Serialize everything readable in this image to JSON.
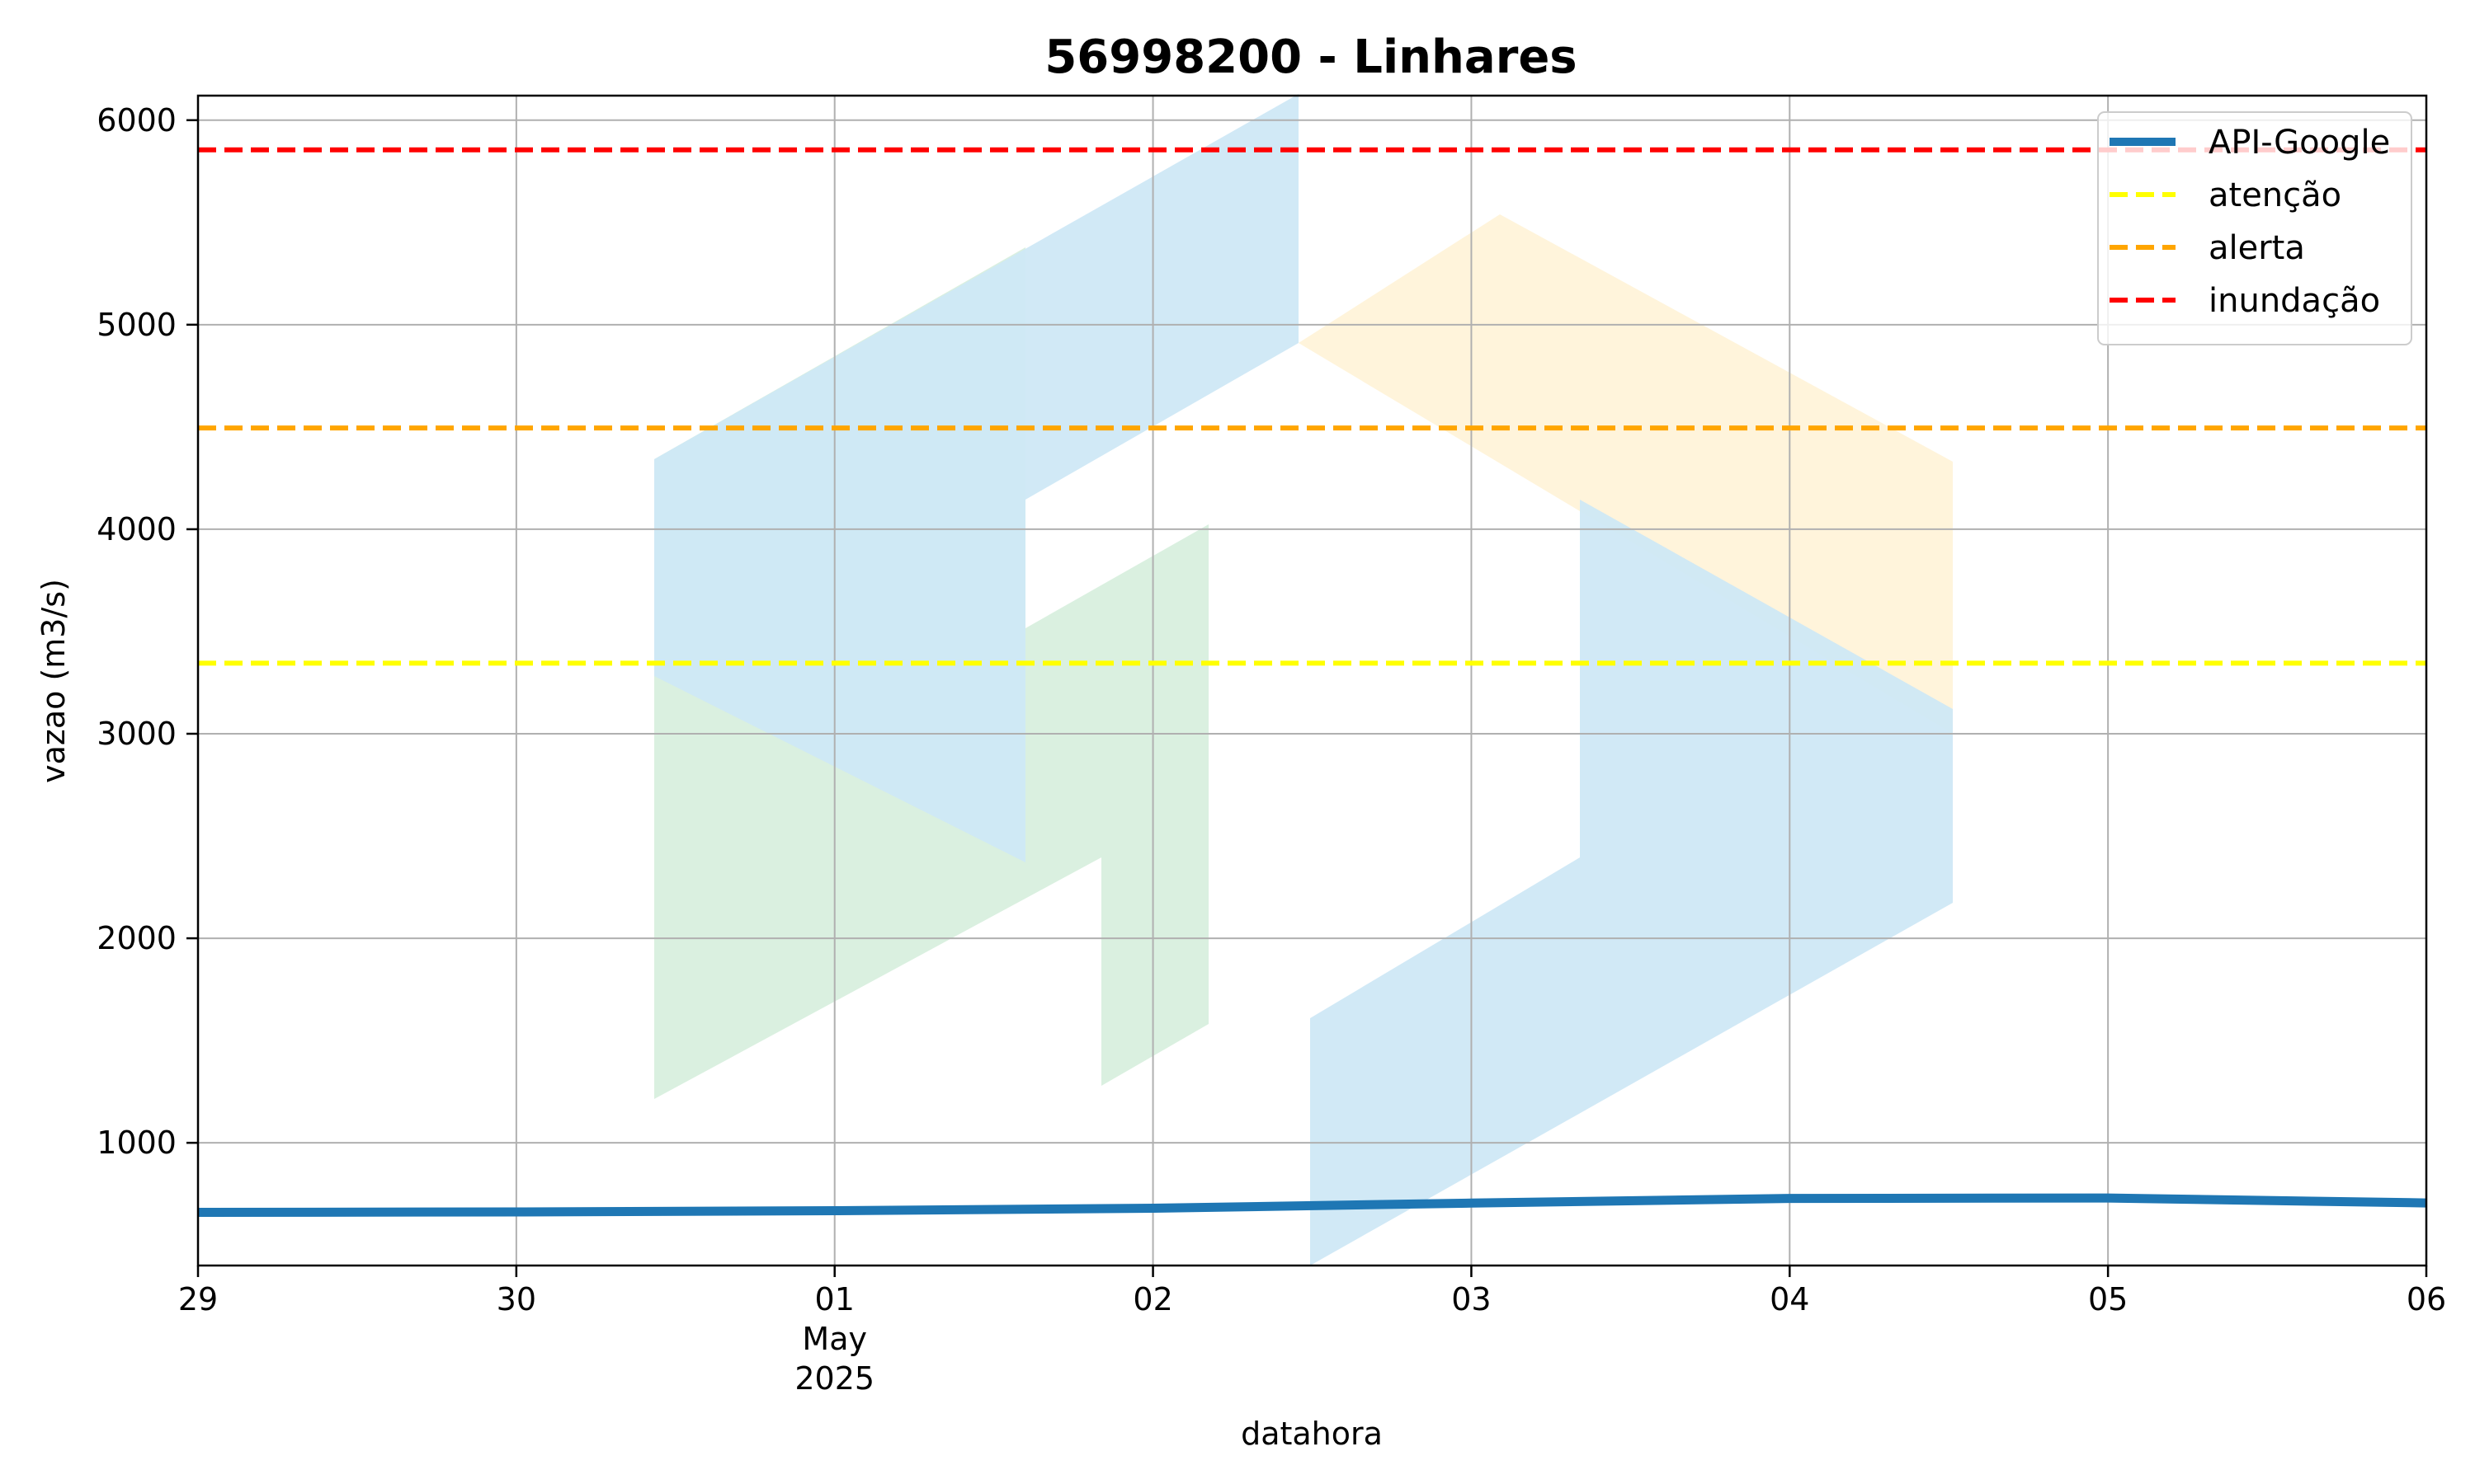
{
  "chart_data": {
    "type": "line",
    "title": "56998200 - Linhares",
    "xlabel": "datahora",
    "ylabel": "vazao (m3/s)",
    "xlim": [
      "2025-04-29",
      "2025-05-06"
    ],
    "ylim": [
      400,
      6120
    ],
    "grid": true,
    "legend_position": "top-right",
    "x_ticks": [
      {
        "date": "2025-04-29",
        "label": "29",
        "sub": []
      },
      {
        "date": "2025-04-30",
        "label": "30",
        "sub": []
      },
      {
        "date": "2025-05-01",
        "label": "01",
        "sub": [
          "May",
          "2025"
        ]
      },
      {
        "date": "2025-05-02",
        "label": "02",
        "sub": []
      },
      {
        "date": "2025-05-03",
        "label": "03",
        "sub": []
      },
      {
        "date": "2025-05-04",
        "label": "04",
        "sub": []
      },
      {
        "date": "2025-05-05",
        "label": "05",
        "sub": []
      },
      {
        "date": "2025-05-06",
        "label": "06",
        "sub": []
      }
    ],
    "y_ticks": [
      1000,
      2000,
      3000,
      4000,
      5000,
      6000
    ],
    "series": [
      {
        "name": "API-Google",
        "color": "#1f77b4",
        "style": "solid",
        "x": [
          "2025-04-29",
          "2025-04-30",
          "2025-05-01",
          "2025-05-02",
          "2025-05-03",
          "2025-05-04",
          "2025-05-05",
          "2025-05-06"
        ],
        "y": [
          660,
          662,
          668,
          680,
          705,
          728,
          730,
          706
        ]
      }
    ],
    "thresholds": [
      {
        "name": "atenção",
        "value": 3345,
        "color": "#ffff00",
        "style": "dashed"
      },
      {
        "name": "alerta",
        "value": 4495,
        "color": "#ffa500",
        "style": "dashed"
      },
      {
        "name": "inundação",
        "value": 5855,
        "color": "#ff0000",
        "style": "dashed"
      }
    ],
    "watermark": {
      "colors": {
        "blue": "#cfe8f5",
        "orange": "#fff3d9",
        "green": "#d6eedd"
      }
    }
  }
}
